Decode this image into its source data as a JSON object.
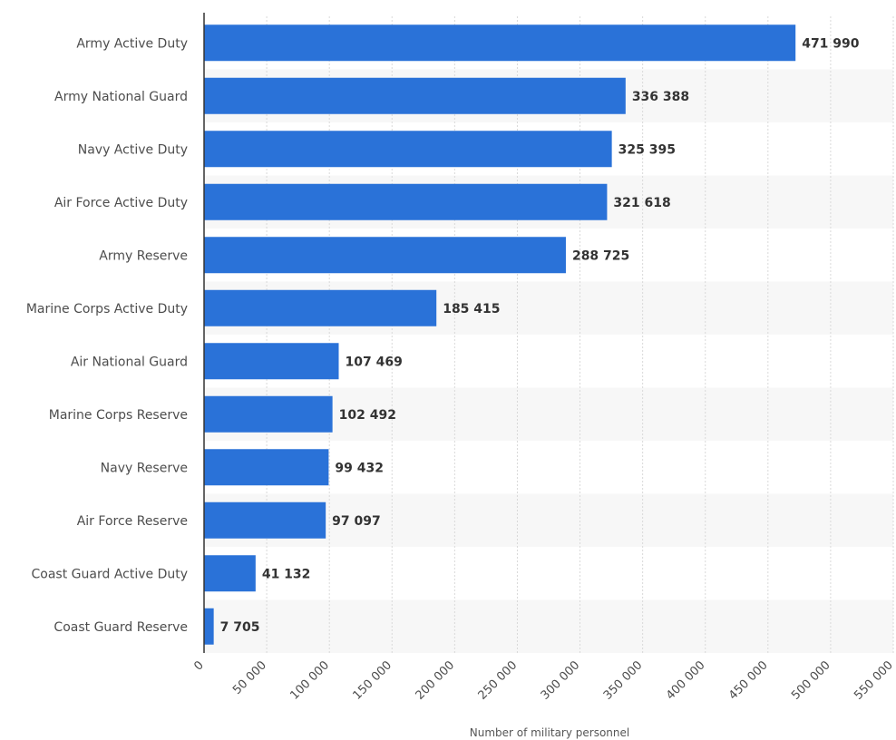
{
  "chart_data": {
    "type": "bar",
    "orientation": "horizontal",
    "categories": [
      "Army Active Duty",
      "Army National Guard",
      "Navy Active Duty",
      "Air Force Active Duty",
      "Army Reserve",
      "Marine Corps Active Duty",
      "Air National Guard",
      "Marine Corps Reserve",
      "Navy Reserve",
      "Air Force Reserve",
      "Coast Guard Active Duty",
      "Coast Guard Reserve"
    ],
    "values": [
      471990,
      336388,
      325395,
      321618,
      288725,
      185415,
      107469,
      102492,
      99432,
      97097,
      41132,
      7705
    ],
    "value_labels": [
      "471 990",
      "336 388",
      "325 395",
      "321 618",
      "288 725",
      "185 415",
      "107 469",
      "102 492",
      "99 432",
      "97 097",
      "41 132",
      "7 705"
    ],
    "xticks": [
      0,
      50000,
      100000,
      150000,
      200000,
      250000,
      300000,
      350000,
      400000,
      450000,
      500000,
      550000
    ],
    "xtick_labels": [
      "0",
      "50 000",
      "100 000",
      "150 000",
      "200 000",
      "250 000",
      "300 000",
      "350 000",
      "400 000",
      "450 000",
      "500 000",
      "550 000"
    ],
    "xlim": [
      0,
      550000
    ],
    "xlabel": "Number of military personnel",
    "ylabel": "",
    "title": "",
    "grid": true,
    "bar_color": "#2a72d8",
    "band_color": "#f7f7f7"
  }
}
